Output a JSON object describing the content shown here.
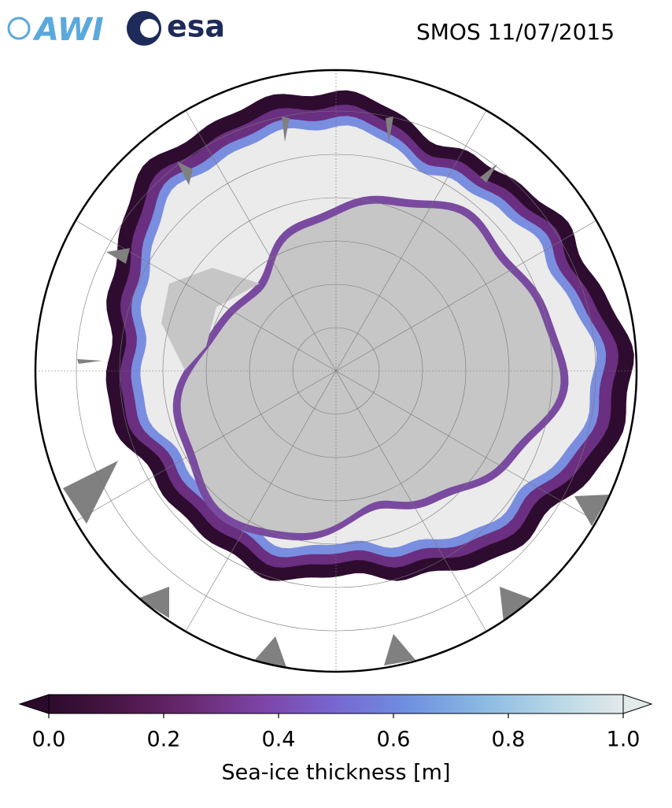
{
  "header": {
    "logos": [
      "AWI",
      "esa"
    ],
    "title": "SMOS 11/07/2015"
  },
  "colorbar": {
    "label": "Sea-ice thickness [m]",
    "lim": [
      0,
      1
    ],
    "ticks": [
      {
        "value": 0,
        "label": "0.0"
      },
      {
        "value": 0.2,
        "label": "0.2"
      },
      {
        "value": 0.4,
        "label": "0.4"
      },
      {
        "value": 0.6,
        "label": "0.6"
      },
      {
        "value": 0.8,
        "label": "0.8"
      },
      {
        "value": 1,
        "label": "1.0"
      }
    ],
    "colors": [
      "#2b0b2b",
      "#4a1748",
      "#6a2a72",
      "#7d45a8",
      "#7867d0",
      "#6f90e0",
      "#8ab8e2",
      "#b5d6e6",
      "#e2eaea"
    ],
    "extend": "both"
  }
}
